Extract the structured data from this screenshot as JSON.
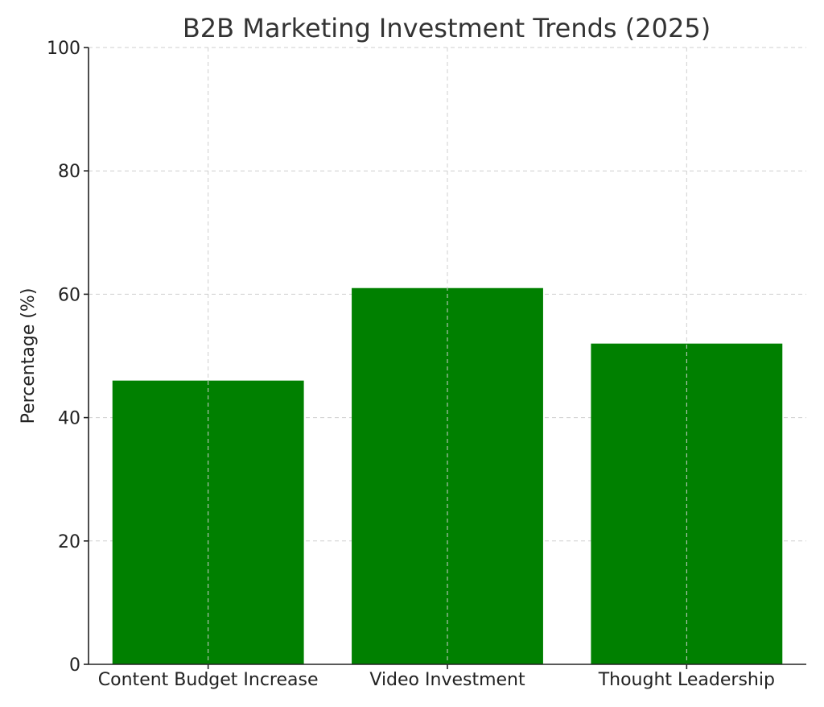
{
  "chart_data": {
    "type": "bar",
    "title": "B2B Marketing Investment Trends (2025)",
    "xlabel": "",
    "ylabel": "Percentage (%)",
    "categories": [
      "Content Budget Increase",
      "Video Investment",
      "Thought Leadership"
    ],
    "values": [
      46,
      61,
      52
    ],
    "ylim": [
      0,
      100
    ],
    "yticks": [
      "0",
      "20",
      "40",
      "60",
      "80",
      "100"
    ],
    "grid": true,
    "bar_color": "#008000"
  }
}
